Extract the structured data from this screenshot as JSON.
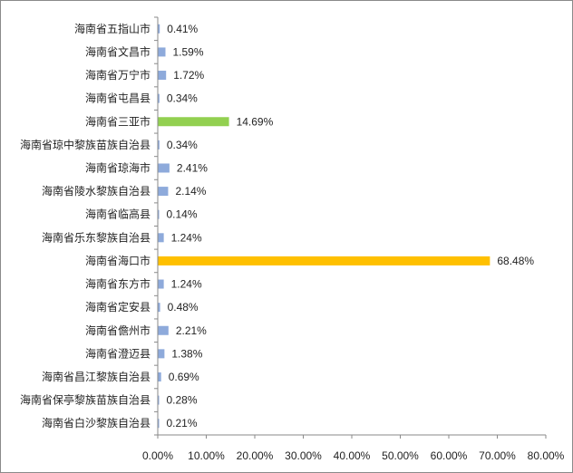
{
  "chart_data": {
    "type": "bar",
    "orientation": "horizontal",
    "categories": [
      "海南省五指山市",
      "海南省文昌市",
      "海南省万宁市",
      "海南省屯昌县",
      "海南省三亚市",
      "海南省琼中黎族苗族自治县",
      "海南省琼海市",
      "海南省陵水黎族自治县",
      "海南省临高县",
      "海南省乐东黎族自治县",
      "海南省海口市",
      "海南省东方市",
      "海南省定安县",
      "海南省儋州市",
      "海南省澄迈县",
      "海南省昌江黎族自治县",
      "海南省保亭黎族苗族自治县",
      "海南省白沙黎族自治县"
    ],
    "values": [
      0.41,
      1.59,
      1.72,
      0.34,
      14.69,
      0.34,
      2.41,
      2.14,
      0.14,
      1.24,
      68.48,
      1.24,
      0.48,
      2.21,
      1.38,
      0.69,
      0.28,
      0.21
    ],
    "value_labels": [
      "0.41%",
      "1.59%",
      "1.72%",
      "0.34%",
      "14.69%",
      "0.34%",
      "2.41%",
      "2.14%",
      "0.14%",
      "1.24%",
      "68.48%",
      "1.24%",
      "0.48%",
      "2.21%",
      "1.38%",
      "0.69%",
      "0.28%",
      "0.21%"
    ],
    "bar_colors": [
      "#8eaadb",
      "#8eaadb",
      "#8eaadb",
      "#8eaadb",
      "#92d050",
      "#8eaadb",
      "#8eaadb",
      "#8eaadb",
      "#8eaadb",
      "#8eaadb",
      "#ffc000",
      "#8eaadb",
      "#8eaadb",
      "#8eaadb",
      "#8eaadb",
      "#8eaadb",
      "#8eaadb",
      "#8eaadb"
    ],
    "x_ticks": [
      "0.00%",
      "10.00%",
      "20.00%",
      "30.00%",
      "40.00%",
      "50.00%",
      "60.00%",
      "70.00%",
      "80.00%"
    ],
    "xlim": [
      0,
      80
    ],
    "grid": false,
    "legend": "none",
    "title": "",
    "xlabel": "",
    "ylabel": ""
  }
}
